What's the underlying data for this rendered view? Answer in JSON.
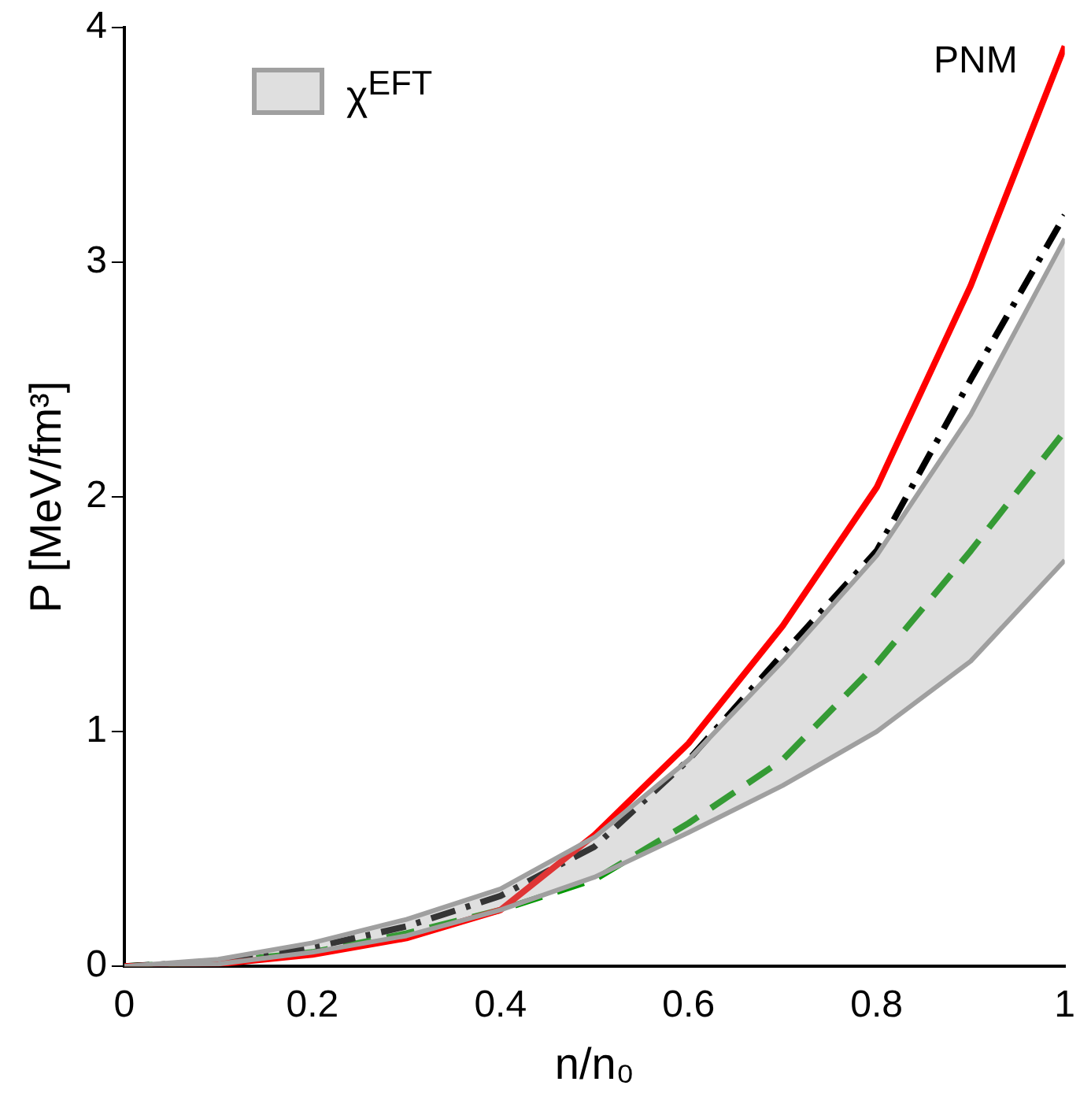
{
  "chart_data": {
    "type": "line",
    "xlabel": "n/n₀",
    "ylabel": "P [MeV/fm³]",
    "annotations": [
      "PNM"
    ],
    "x": [
      0,
      0.1,
      0.2,
      0.3,
      0.4,
      0.5,
      0.6,
      0.7,
      0.8,
      0.9,
      1
    ],
    "xlim": [
      0,
      1
    ],
    "xticks": [
      0,
      0.2,
      0.4,
      0.6,
      0.8,
      1
    ],
    "ylim": [
      0,
      4
    ],
    "yticks": [
      0,
      1,
      2,
      3,
      4
    ],
    "grid": false,
    "legend": "top left",
    "marker": "none",
    "series": [
      {
        "name": "χ$^{EFT}$",
        "type": "area",
        "color": "#a0a0a0",
        "values": [
          null,
          null,
          null,
          null,
          null,
          null,
          null,
          null,
          null,
          null,
          null
        ],
        "lower": [
          0,
          0.01,
          0.06,
          0.13,
          0.24,
          0.38,
          0.57,
          0.77,
          1.0,
          1.3,
          1.73
        ],
        "upper": [
          0,
          0.03,
          0.1,
          0.2,
          0.33,
          0.55,
          0.88,
          1.3,
          1.75,
          2.35,
          3.1
        ]
      },
      {
        "color": "#a0a0a0",
        "line_style": "solid",
        "values": [
          0,
          0.01,
          0.06,
          0.13,
          0.24,
          0.38,
          0.57,
          0.77,
          1.0,
          1.3,
          1.73
        ]
      },
      {
        "color": "#a0a0a0",
        "line_style": "solid",
        "values": [
          0,
          0.03,
          0.1,
          0.2,
          0.33,
          0.55,
          0.88,
          1.3,
          1.75,
          2.35,
          3.1
        ]
      },
      {
        "color": "#ff0000",
        "line_style": "solid",
        "values": [
          0,
          0.01,
          0.05,
          0.12,
          0.24,
          0.56,
          0.95,
          1.45,
          2.04,
          2.9,
          3.92
        ]
      },
      {
        "color": "#000000",
        "line_style": "dashdot",
        "values": [
          0,
          0.02,
          0.08,
          0.17,
          0.3,
          0.51,
          0.88,
          1.33,
          1.77,
          2.5,
          3.2
        ]
      },
      {
        "color": "#009900",
        "line_style": "dashed",
        "values": [
          0,
          0.02,
          0.06,
          0.14,
          0.24,
          0.37,
          0.61,
          0.88,
          1.29,
          1.77,
          2.28
        ]
      }
    ]
  }
}
